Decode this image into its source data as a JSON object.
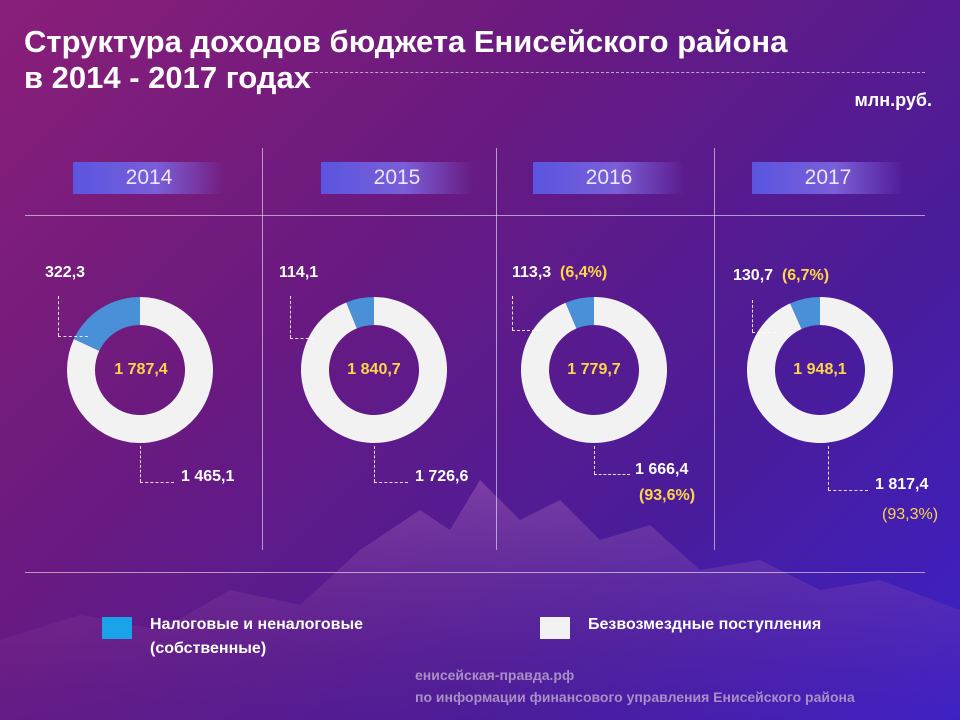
{
  "title": {
    "line1": "Структура доходов бюджета Енисейского района",
    "line2": "в 2014 - 2017 годах"
  },
  "unit": "млн.руб.",
  "colors": {
    "own": "#4a90d9",
    "gratuitous": "#f2f2f2",
    "percent": "#ffd54a",
    "legend_own": "#1aa3e8"
  },
  "chart_data": {
    "type": "donut",
    "title": "Структура доходов бюджета Енисейского района в 2014 - 2017 годах",
    "unit": "млн.руб.",
    "series": [
      {
        "name": "Налоговые и неналоговые (собственные)",
        "values": [
          322.3,
          114.1,
          113.3,
          130.7
        ]
      },
      {
        "name": "Безвозмездные поступления",
        "values": [
          1465.1,
          1726.6,
          1666.4,
          1817.4
        ]
      }
    ],
    "categories": [
      "2014",
      "2015",
      "2016",
      "2017"
    ],
    "totals": [
      1787.4,
      1840.7,
      1779.7,
      1948.1
    ],
    "panels": [
      {
        "year": "2014",
        "total": "1 787,4",
        "own": "322,3",
        "own_pct": "",
        "gratuitous": "1 465,1",
        "gratuitous_pct": ""
      },
      {
        "year": "2015",
        "total": "1 840,7",
        "own": "114,1",
        "own_pct": "",
        "gratuitous": "1 726,6",
        "gratuitous_pct": ""
      },
      {
        "year": "2016",
        "total": "1 779,7",
        "own": "113,3",
        "own_pct": "(6,4%)",
        "gratuitous": "1 666,4",
        "gratuitous_pct": "(93,6%)"
      },
      {
        "year": "2017",
        "total": "1 948,1",
        "own": "130,7",
        "own_pct": "(6,7%)",
        "gratuitous": "1 817,4",
        "gratuitous_pct": "(93,3%)"
      }
    ]
  },
  "legend": {
    "own_line1": "Налоговые  и неналоговые",
    "own_line2": "(собственные)",
    "gratuitous": "Безвозмездные  поступления"
  },
  "source": {
    "site": "енисейская-правда.рф",
    "note": "по информации финансового управления Енисейского района"
  }
}
